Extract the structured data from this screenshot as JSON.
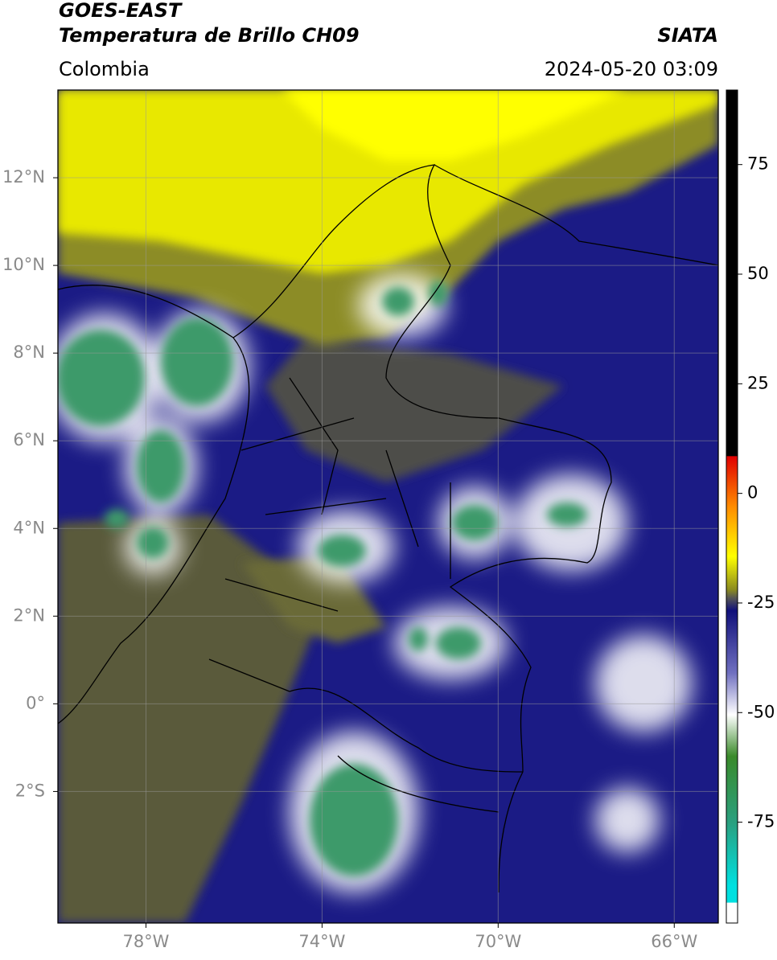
{
  "header": {
    "title": "GOES-EAST",
    "subtitle": "Temperatura de Brillo CH09",
    "region": "Colombia",
    "source": "SIATA",
    "datetime": "2024-05-20 03:09"
  },
  "map": {
    "xlim": [
      -80,
      -65
    ],
    "ylim": [
      -5,
      14
    ],
    "xticks": [
      {
        "value": -78,
        "label": "78°W"
      },
      {
        "value": -74,
        "label": "74°W"
      },
      {
        "value": -70,
        "label": "70°W"
      },
      {
        "value": -66,
        "label": "66°W"
      }
    ],
    "yticks": [
      {
        "value": 12,
        "label": "12°N"
      },
      {
        "value": 10,
        "label": "10°N"
      },
      {
        "value": 8,
        "label": "8°N"
      },
      {
        "value": 6,
        "label": "6°N"
      },
      {
        "value": 4,
        "label": "4°N"
      },
      {
        "value": 2,
        "label": "2°N"
      },
      {
        "value": 0,
        "label": "0°"
      },
      {
        "value": -2,
        "label": "2°S"
      }
    ],
    "grid": true
  },
  "colorbar": {
    "lim": [
      -98,
      92
    ],
    "ticks": [
      75,
      50,
      25,
      0,
      -25,
      -50,
      -75
    ]
  }
}
